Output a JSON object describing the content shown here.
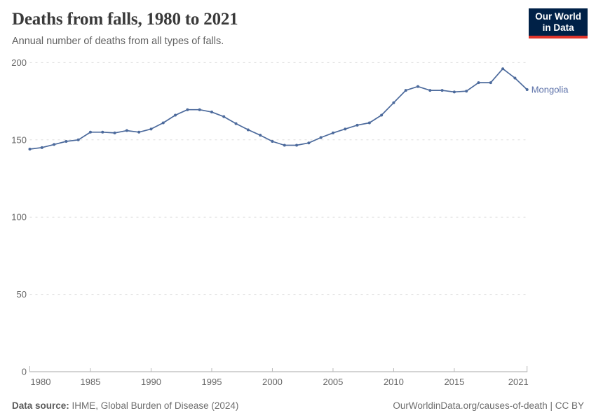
{
  "header": {
    "title": "Deaths from falls, 1980 to 2021",
    "subtitle": "Annual number of deaths from all types of falls."
  },
  "logo": {
    "line1": "Our World",
    "line2": "in Data",
    "bg_color": "#002147",
    "accent_color": "#e0352b"
  },
  "chart_data": {
    "type": "line",
    "title": "Deaths from falls, 1980 to 2021",
    "entity": "Mongolia",
    "xlabel": "",
    "ylabel": "",
    "xlim": [
      1980,
      2021
    ],
    "ylim": [
      0,
      200
    ],
    "grid": true,
    "legend_position": "right-of-line-end-label",
    "line_color": "#4c6a9c",
    "label_color": "#5b70a8",
    "x_ticks": [
      1980,
      1985,
      1990,
      1995,
      2000,
      2005,
      2010,
      2015,
      2021
    ],
    "y_ticks": [
      0,
      50,
      100,
      150,
      200
    ],
    "x": [
      1980,
      1981,
      1982,
      1983,
      1984,
      1985,
      1986,
      1987,
      1988,
      1989,
      1990,
      1991,
      1992,
      1993,
      1994,
      1995,
      1996,
      1997,
      1998,
      1999,
      2000,
      2001,
      2002,
      2003,
      2004,
      2005,
      2006,
      2007,
      2008,
      2009,
      2010,
      2011,
      2012,
      2013,
      2014,
      2015,
      2016,
      2017,
      2018,
      2019,
      2020,
      2021
    ],
    "values": [
      144,
      145,
      147,
      149,
      150,
      155,
      155,
      154.5,
      156,
      155,
      157,
      161,
      166,
      169.5,
      169.5,
      168,
      165,
      160.5,
      156.5,
      153,
      149,
      146.5,
      146.5,
      148,
      151.5,
      154.5,
      157,
      159.5,
      161,
      166,
      174,
      182,
      184.5,
      182,
      182,
      181,
      181.5,
      187,
      187,
      196,
      190,
      182.5
    ]
  },
  "footer": {
    "source_label": "Data source:",
    "source_text": "IHME, Global Burden of Disease (2024)",
    "link_text": "OurWorldinData.org/causes-of-death | CC BY"
  }
}
